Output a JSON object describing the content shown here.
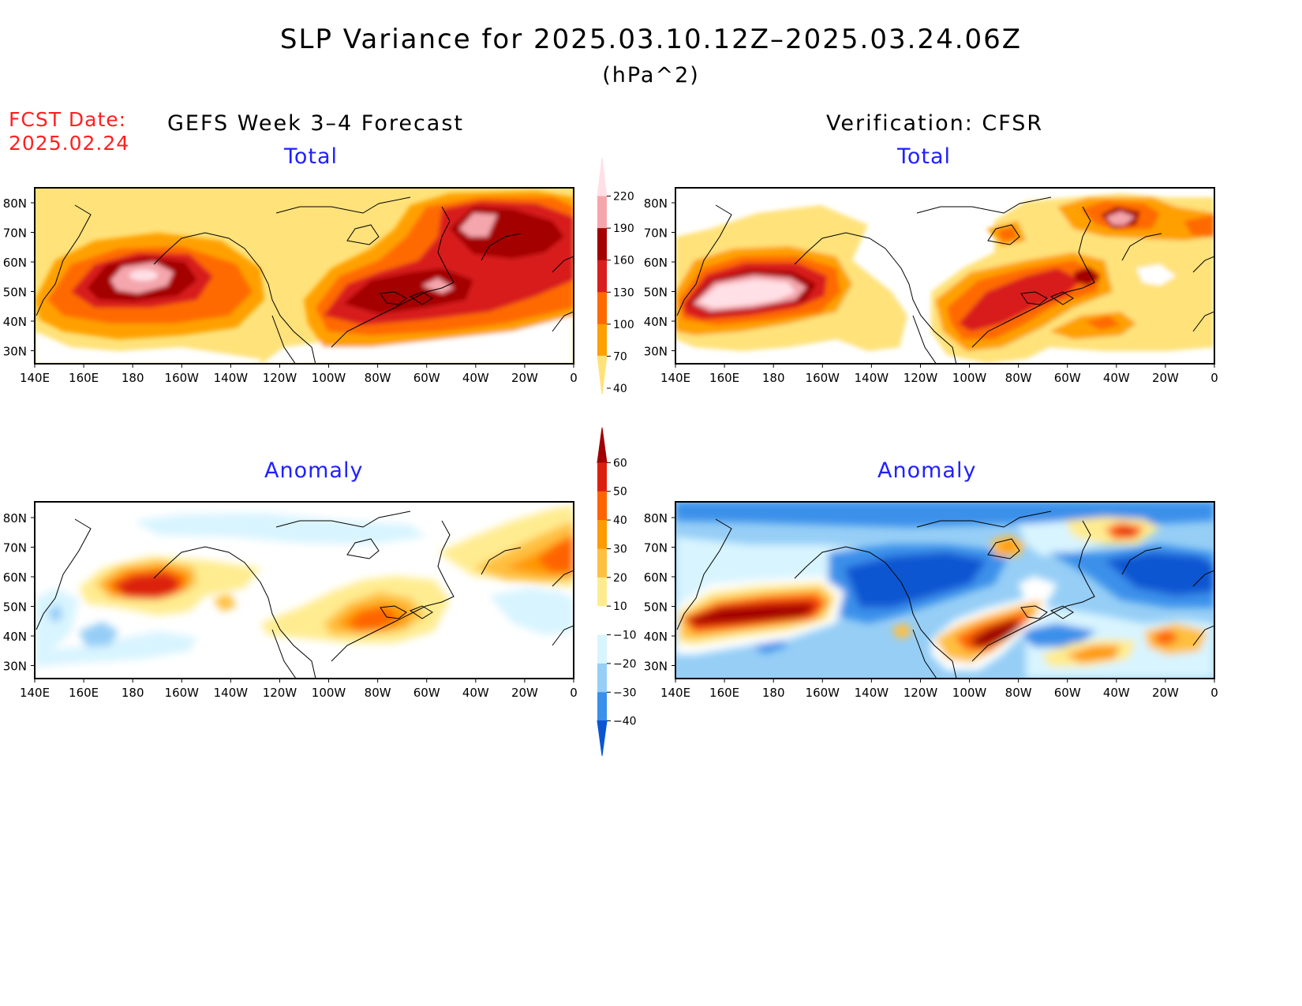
{
  "title": "SLP Variance for 2025.03.10.12Z–2025.03.24.06Z",
  "units": "(hPa^2)",
  "fcst_date": {
    "label": "FCST Date:",
    "value": "2025.02.24"
  },
  "left_column_title": "GEFS Week 3–4 Forecast",
  "right_column_title": "Verification: CFSR",
  "panels": [
    {
      "id": "forecast-total",
      "subtitle": "Total"
    },
    {
      "id": "verification-total",
      "subtitle": "Total"
    },
    {
      "id": "forecast-anomaly",
      "subtitle": "Anomaly"
    },
    {
      "id": "verification-anomaly",
      "subtitle": "Anomaly"
    }
  ],
  "lon_ticks": [
    "140E",
    "160E",
    "180",
    "160W",
    "140W",
    "120W",
    "100W",
    "80W",
    "60W",
    "40W",
    "20W",
    "0"
  ],
  "lat_ticks_total": [
    "80N",
    "70N",
    "60N",
    "50N",
    "40N",
    "30N"
  ],
  "lat_ticks_anomaly": [
    "80N",
    "70N",
    "60N",
    "50N",
    "40N",
    "30N"
  ],
  "colorbar_total": {
    "labels": [
      "220",
      "190",
      "160",
      "130",
      "100",
      "70",
      "40"
    ],
    "colors": [
      "#ffe0e6",
      "#f4a6ac",
      "#a40000",
      "#d81e1e",
      "#ff6a00",
      "#ffa000",
      "#ffe27a"
    ]
  },
  "colorbar_anomaly": {
    "labels": [
      "60",
      "50",
      "40",
      "30",
      "20",
      "10",
      "−10",
      "−20",
      "−30",
      "−40"
    ],
    "colors": [
      "#a00000",
      "#dc2010",
      "#ff6400",
      "#ff9a00",
      "#ffc040",
      "#ffec90",
      "#ffffff",
      "#d8f4ff",
      "#96cef6",
      "#3a90ea",
      "#0a56d2"
    ]
  }
}
